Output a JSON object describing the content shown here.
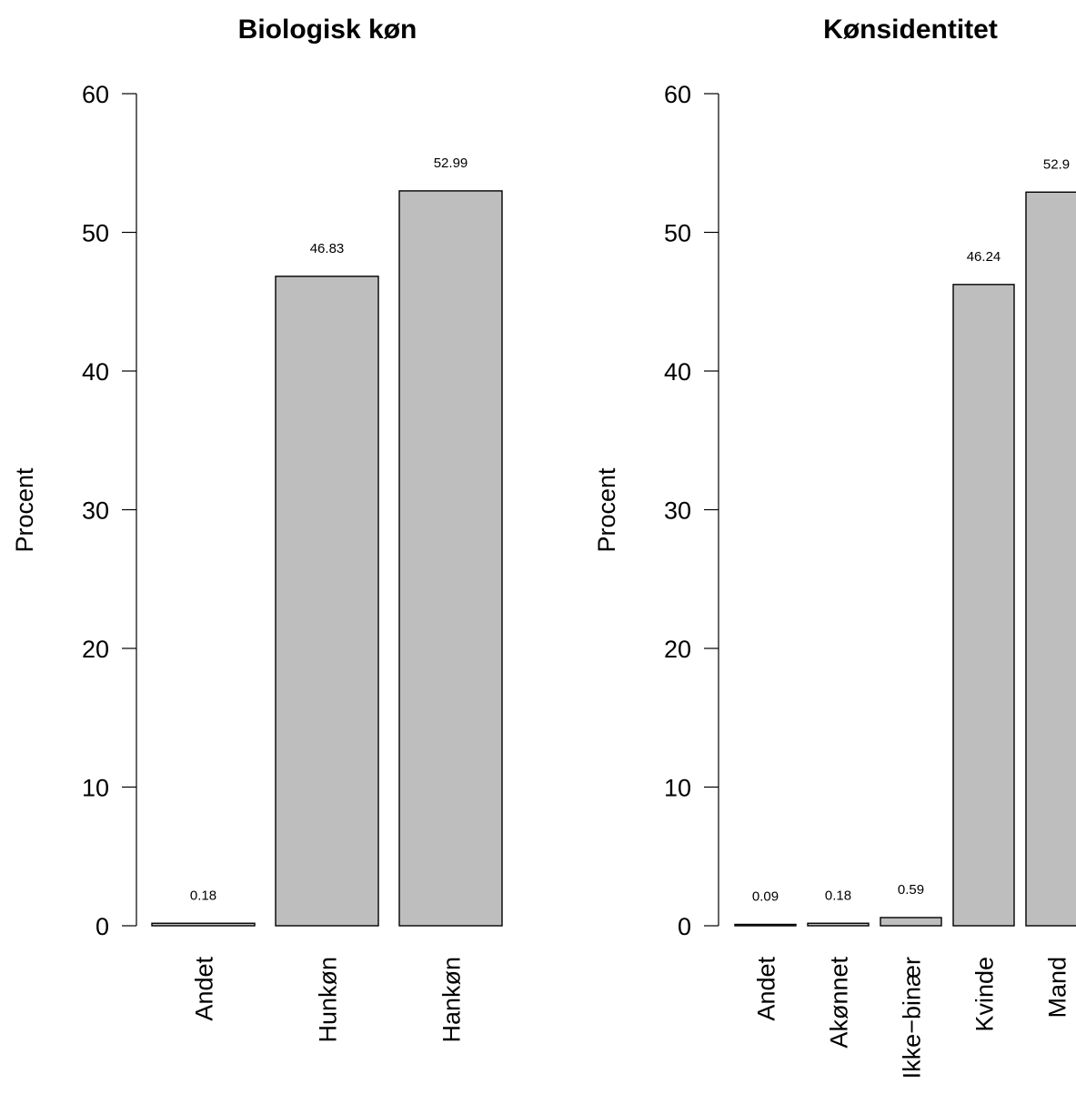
{
  "chart_data": [
    {
      "type": "bar",
      "title": "Biologisk køn",
      "ylabel": "Procent",
      "xlabel": "",
      "ylim": [
        0,
        60
      ],
      "yticks": [
        "0",
        "10",
        "20",
        "30",
        "40",
        "50",
        "60"
      ],
      "categories": [
        "Andet",
        "Hunkøn",
        "Hankøn"
      ],
      "values": [
        0.18,
        46.83,
        52.99
      ],
      "value_labels": [
        "0.18",
        "46.83",
        "52.99"
      ],
      "bar_color": "#bebebe",
      "grid": false,
      "legend": "none"
    },
    {
      "type": "bar",
      "title": "Kønsidentitet",
      "ylabel": "Procent",
      "xlabel": "",
      "ylim": [
        0,
        60
      ],
      "yticks": [
        "0",
        "10",
        "20",
        "30",
        "40",
        "50",
        "60"
      ],
      "categories": [
        "Andet",
        "Akønnet",
        "Ikke−binær",
        "Kvinde",
        "Mand"
      ],
      "values": [
        0.09,
        0.18,
        0.59,
        46.24,
        52.9
      ],
      "value_labels": [
        "0.09",
        "0.18",
        "0.59",
        "46.24",
        "52.9"
      ],
      "bar_color": "#bebebe",
      "grid": false,
      "legend": "none"
    }
  ]
}
